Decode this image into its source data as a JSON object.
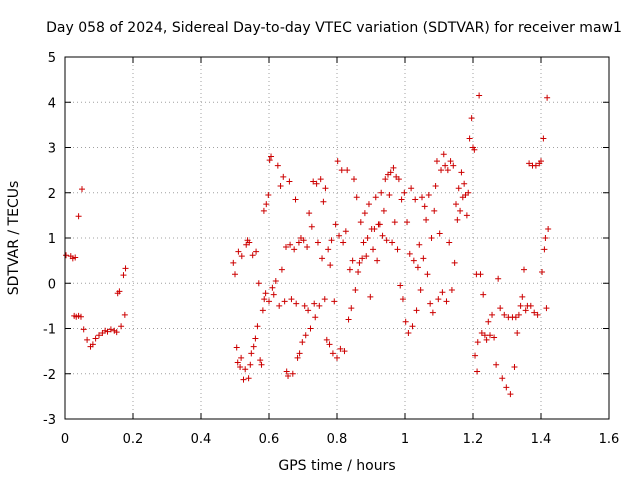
{
  "chart_data": {
    "type": "scatter",
    "title": "Day 058 of 2024, Sidereal Day-to-day VTEC variation (SDTVAR) for receiver maw1",
    "xlabel": "GPS time / hours",
    "ylabel": "SDTVAR / TECUs",
    "xlim": [
      0,
      1.6
    ],
    "ylim": [
      -3,
      5
    ],
    "xticks": [
      0,
      0.2,
      0.4,
      0.6,
      0.8,
      1,
      1.2,
      1.4,
      1.6
    ],
    "xtick_labels": [
      "0",
      "0.2",
      "0.4",
      "0.6",
      "0.8",
      "1",
      "1.2",
      "1.4",
      "1.6"
    ],
    "yticks": [
      -3,
      -2,
      -1,
      0,
      1,
      2,
      3,
      4,
      5
    ],
    "ytick_labels": [
      "-3",
      "-2",
      "-1",
      "0",
      "1",
      "2",
      "3",
      "4",
      "5"
    ],
    "grid": true,
    "marker": "+",
    "color": "#cc0000",
    "series": [
      {
        "name": "maw1",
        "points": [
          [
            0.003,
            0.62
          ],
          [
            0.017,
            0.6
          ],
          [
            0.023,
            0.55
          ],
          [
            0.03,
            0.57
          ],
          [
            0.027,
            -0.72
          ],
          [
            0.033,
            -0.74
          ],
          [
            0.04,
            -0.72
          ],
          [
            0.047,
            -0.74
          ],
          [
            0.04,
            1.48
          ],
          [
            0.05,
            2.08
          ],
          [
            0.055,
            -1.02
          ],
          [
            0.065,
            -1.25
          ],
          [
            0.075,
            -1.4
          ],
          [
            0.082,
            -1.35
          ],
          [
            0.09,
            -1.22
          ],
          [
            0.1,
            -1.15
          ],
          [
            0.11,
            -1.1
          ],
          [
            0.118,
            -1.05
          ],
          [
            0.125,
            -1.07
          ],
          [
            0.135,
            -1.02
          ],
          [
            0.145,
            -1.05
          ],
          [
            0.152,
            -1.08
          ],
          [
            0.155,
            -0.22
          ],
          [
            0.16,
            -0.18
          ],
          [
            0.165,
            -0.95
          ],
          [
            0.172,
            0.18
          ],
          [
            0.178,
            0.33
          ],
          [
            0.176,
            -0.7
          ],
          [
            0.495,
            0.45
          ],
          [
            0.5,
            0.2
          ],
          [
            0.505,
            -1.42
          ],
          [
            0.51,
            0.7
          ],
          [
            0.508,
            -1.75
          ],
          [
            0.515,
            -1.85
          ],
          [
            0.52,
            0.6
          ],
          [
            0.518,
            -1.65
          ],
          [
            0.525,
            -2.13
          ],
          [
            0.53,
            -1.9
          ],
          [
            0.533,
            0.85
          ],
          [
            0.537,
            0.95
          ],
          [
            0.54,
            -2.1
          ],
          [
            0.542,
            0.9
          ],
          [
            0.545,
            -1.8
          ],
          [
            0.548,
            -1.55
          ],
          [
            0.552,
            0.62
          ],
          [
            0.555,
            -1.4
          ],
          [
            0.56,
            -1.22
          ],
          [
            0.562,
            0.7
          ],
          [
            0.566,
            -0.95
          ],
          [
            0.57,
            0.0
          ],
          [
            0.574,
            -1.7
          ],
          [
            0.578,
            -1.8
          ],
          [
            0.582,
            -0.6
          ],
          [
            0.586,
            -0.35
          ],
          [
            0.59,
            -0.22
          ],
          [
            0.585,
            1.6
          ],
          [
            0.592,
            1.75
          ],
          [
            0.598,
            1.95
          ],
          [
            0.602,
            2.72
          ],
          [
            0.606,
            2.8
          ],
          [
            0.6,
            -0.4
          ],
          [
            0.61,
            -0.1
          ],
          [
            0.614,
            -0.25
          ],
          [
            0.62,
            0.05
          ],
          [
            0.626,
            2.6
          ],
          [
            0.63,
            -0.5
          ],
          [
            0.634,
            2.15
          ],
          [
            0.638,
            0.3
          ],
          [
            0.642,
            2.35
          ],
          [
            0.646,
            -0.4
          ],
          [
            0.65,
            0.8
          ],
          [
            0.652,
            -1.95
          ],
          [
            0.656,
            -2.05
          ],
          [
            0.66,
            2.25
          ],
          [
            0.662,
            0.85
          ],
          [
            0.666,
            -0.35
          ],
          [
            0.67,
            -2.0
          ],
          [
            0.674,
            0.75
          ],
          [
            0.678,
            1.85
          ],
          [
            0.68,
            -0.45
          ],
          [
            0.684,
            -1.65
          ],
          [
            0.688,
            0.9
          ],
          [
            0.69,
            -1.55
          ],
          [
            0.694,
            1.0
          ],
          [
            0.698,
            -1.3
          ],
          [
            0.702,
            0.95
          ],
          [
            0.705,
            -0.5
          ],
          [
            0.708,
            -1.15
          ],
          [
            0.712,
            0.8
          ],
          [
            0.715,
            -0.6
          ],
          [
            0.718,
            1.55
          ],
          [
            0.722,
            -1.0
          ],
          [
            0.726,
            1.25
          ],
          [
            0.73,
            2.25
          ],
          [
            0.733,
            -0.45
          ],
          [
            0.736,
            -0.75
          ],
          [
            0.74,
            2.2
          ],
          [
            0.744,
            0.9
          ],
          [
            0.748,
            -0.5
          ],
          [
            0.752,
            2.3
          ],
          [
            0.756,
            0.55
          ],
          [
            0.76,
            1.8
          ],
          [
            0.764,
            -0.35
          ],
          [
            0.766,
            2.1
          ],
          [
            0.77,
            -1.25
          ],
          [
            0.774,
            0.75
          ],
          [
            0.778,
            -1.35
          ],
          [
            0.78,
            0.4
          ],
          [
            0.784,
            0.95
          ],
          [
            0.788,
            -1.55
          ],
          [
            0.792,
            -0.4
          ],
          [
            0.796,
            1.3
          ],
          [
            0.8,
            -1.65
          ],
          [
            0.802,
            2.7
          ],
          [
            0.806,
            1.05
          ],
          [
            0.81,
            -1.45
          ],
          [
            0.814,
            2.5
          ],
          [
            0.818,
            0.9
          ],
          [
            0.822,
            -1.5
          ],
          [
            0.826,
            1.15
          ],
          [
            0.83,
            2.5
          ],
          [
            0.834,
            -0.8
          ],
          [
            0.838,
            0.3
          ],
          [
            0.842,
            -0.55
          ],
          [
            0.846,
            0.5
          ],
          [
            0.85,
            2.3
          ],
          [
            0.854,
            -0.15
          ],
          [
            0.858,
            1.9
          ],
          [
            0.862,
            0.25
          ],
          [
            0.866,
            0.45
          ],
          [
            0.87,
            1.35
          ],
          [
            0.874,
            0.55
          ],
          [
            0.878,
            0.9
          ],
          [
            0.882,
            1.55
          ],
          [
            0.886,
            0.6
          ],
          [
            0.89,
            1.0
          ],
          [
            0.894,
            1.75
          ],
          [
            0.898,
            -0.3
          ],
          [
            0.902,
            1.2
          ],
          [
            0.906,
            0.75
          ],
          [
            0.91,
            1.2
          ],
          [
            0.914,
            1.9
          ],
          [
            0.918,
            0.5
          ],
          [
            0.922,
            1.3
          ],
          [
            0.926,
            1.3
          ],
          [
            0.93,
            2.0
          ],
          [
            0.934,
            1.05
          ],
          [
            0.938,
            1.6
          ],
          [
            0.942,
            2.3
          ],
          [
            0.946,
            0.95
          ],
          [
            0.95,
            2.4
          ],
          [
            0.954,
            1.95
          ],
          [
            0.958,
            2.45
          ],
          [
            0.962,
            0.9
          ],
          [
            0.966,
            2.55
          ],
          [
            0.97,
            1.35
          ],
          [
            0.974,
            2.35
          ],
          [
            0.978,
            0.75
          ],
          [
            0.982,
            2.3
          ],
          [
            0.986,
            -0.05
          ],
          [
            0.99,
            1.85
          ],
          [
            0.994,
            -0.35
          ],
          [
            0.998,
            2.0
          ],
          [
            1.002,
            -0.85
          ],
          [
            1.006,
            1.35
          ],
          [
            1.01,
            -1.1
          ],
          [
            1.014,
            0.65
          ],
          [
            1.018,
            2.1
          ],
          [
            1.022,
            -0.95
          ],
          [
            1.026,
            0.5
          ],
          [
            1.03,
            1.85
          ],
          [
            1.034,
            -0.6
          ],
          [
            1.038,
            0.35
          ],
          [
            1.042,
            0.85
          ],
          [
            1.046,
            -0.15
          ],
          [
            1.05,
            1.9
          ],
          [
            1.054,
            0.55
          ],
          [
            1.058,
            1.7
          ],
          [
            1.062,
            1.4
          ],
          [
            1.066,
            0.2
          ],
          [
            1.07,
            1.95
          ],
          [
            1.074,
            -0.45
          ],
          [
            1.078,
            1.0
          ],
          [
            1.082,
            -0.65
          ],
          [
            1.086,
            1.6
          ],
          [
            1.09,
            2.15
          ],
          [
            1.094,
            2.7
          ],
          [
            1.098,
            -0.35
          ],
          [
            1.102,
            1.1
          ],
          [
            1.106,
            2.5
          ],
          [
            1.11,
            -0.2
          ],
          [
            1.114,
            2.85
          ],
          [
            1.118,
            2.6
          ],
          [
            1.122,
            -0.4
          ],
          [
            1.126,
            2.5
          ],
          [
            1.13,
            0.9
          ],
          [
            1.134,
            2.7
          ],
          [
            1.138,
            -0.15
          ],
          [
            1.142,
            2.6
          ],
          [
            1.146,
            0.45
          ],
          [
            1.15,
            1.75
          ],
          [
            1.154,
            1.4
          ],
          [
            1.158,
            2.1
          ],
          [
            1.162,
            1.6
          ],
          [
            1.166,
            2.45
          ],
          [
            1.17,
            1.9
          ],
          [
            1.174,
            2.2
          ],
          [
            1.178,
            1.95
          ],
          [
            1.182,
            1.5
          ],
          [
            1.186,
            2.0
          ],
          [
            1.19,
            3.2
          ],
          [
            1.196,
            3.65
          ],
          [
            1.2,
            3.0
          ],
          [
            1.204,
            2.95
          ],
          [
            1.206,
            -1.6
          ],
          [
            1.21,
            0.2
          ],
          [
            1.212,
            -1.95
          ],
          [
            1.214,
            -1.3
          ],
          [
            1.218,
            4.15
          ],
          [
            1.222,
            0.2
          ],
          [
            1.226,
            -1.1
          ],
          [
            1.23,
            -0.25
          ],
          [
            1.235,
            -1.15
          ],
          [
            1.24,
            -1.25
          ],
          [
            1.245,
            -0.85
          ],
          [
            1.25,
            -1.15
          ],
          [
            1.256,
            -0.7
          ],
          [
            1.262,
            -1.2
          ],
          [
            1.268,
            -1.8
          ],
          [
            1.274,
            0.1
          ],
          [
            1.28,
            -0.55
          ],
          [
            1.286,
            -2.1
          ],
          [
            1.292,
            -0.7
          ],
          [
            1.298,
            -2.3
          ],
          [
            1.304,
            -0.75
          ],
          [
            1.31,
            -2.45
          ],
          [
            1.316,
            -0.75
          ],
          [
            1.322,
            -1.85
          ],
          [
            1.326,
            -0.75
          ],
          [
            1.33,
            -1.1
          ],
          [
            1.335,
            -0.7
          ],
          [
            1.34,
            -0.5
          ],
          [
            1.345,
            -0.3
          ],
          [
            1.35,
            0.3
          ],
          [
            1.355,
            -0.6
          ],
          [
            1.36,
            -0.5
          ],
          [
            1.365,
            2.65
          ],
          [
            1.37,
            -0.5
          ],
          [
            1.375,
            2.6
          ],
          [
            1.38,
            -0.65
          ],
          [
            1.385,
            2.6
          ],
          [
            1.39,
            -0.7
          ],
          [
            1.395,
            2.65
          ],
          [
            1.4,
            2.7
          ],
          [
            1.403,
            0.25
          ],
          [
            1.407,
            3.2
          ],
          [
            1.41,
            0.75
          ],
          [
            1.413,
            1.0
          ],
          [
            1.416,
            -0.55
          ],
          [
            1.418,
            4.1
          ],
          [
            1.421,
            1.2
          ]
        ]
      }
    ]
  }
}
